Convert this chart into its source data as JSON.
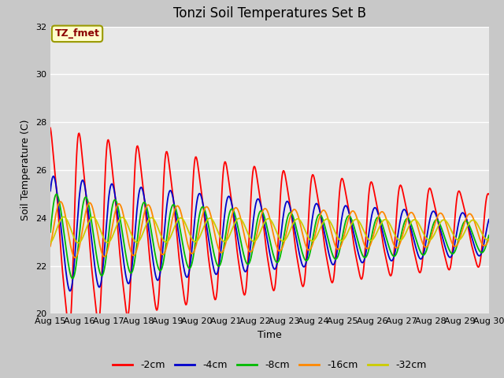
{
  "title": "Tonzi Soil Temperatures Set B",
  "xlabel": "Time",
  "ylabel": "Soil Temperature (C)",
  "ylim": [
    20,
    32
  ],
  "yticks": [
    20,
    22,
    24,
    26,
    28,
    30,
    32
  ],
  "x_tick_labels": [
    "Aug 15",
    "Aug 16",
    "Aug 17",
    "Aug 18",
    "Aug 19",
    "Aug 20",
    "Aug 21",
    "Aug 22",
    "Aug 23",
    "Aug 24",
    "Aug 25",
    "Aug 26",
    "Aug 27",
    "Aug 28",
    "Aug 29",
    "Aug 30"
  ],
  "annotation_text": "TZ_fmet",
  "annotation_color": "#8b0000",
  "annotation_bg": "#ffffcc",
  "annotation_border": "#999900",
  "series_colors": [
    "#ff0000",
    "#0000cc",
    "#00bb00",
    "#ff8800",
    "#cccc00"
  ],
  "series_labels": [
    "-2cm",
    "-4cm",
    "-8cm",
    "-16cm",
    "-32cm"
  ],
  "fig_facecolor": "#c8c8c8",
  "plot_bg_color": "#e8e8e8",
  "n_points": 720,
  "n_days": 15,
  "title_fontsize": 12,
  "axis_label_fontsize": 9,
  "tick_fontsize": 8,
  "legend_fontsize": 9
}
